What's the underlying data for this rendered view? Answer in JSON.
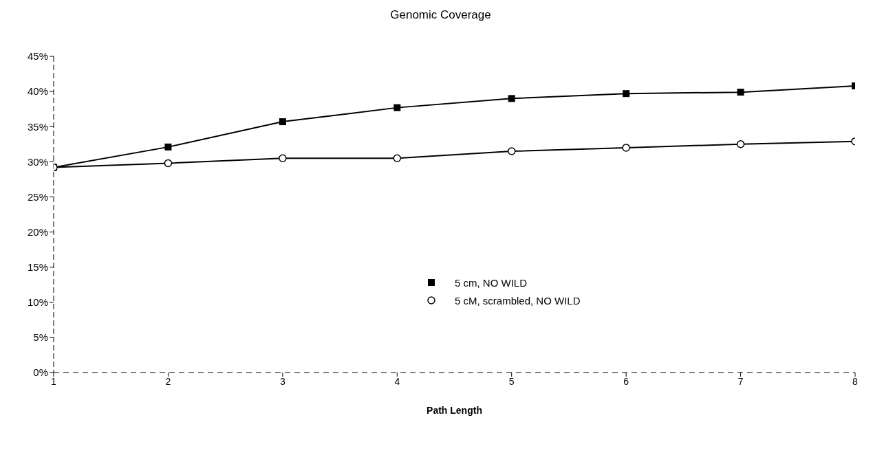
{
  "chart_data": {
    "type": "line",
    "title": "Genomic Coverage",
    "xlabel": "Path Length",
    "x": [
      1,
      2,
      3,
      4,
      5,
      6,
      7,
      8
    ],
    "series": [
      {
        "name": "5 cm, NO WILD",
        "color": "#000000",
        "marker": "square",
        "values": [
          29.2,
          32.1,
          35.7,
          37.7,
          39.0,
          39.7,
          39.9,
          40.8
        ]
      },
      {
        "name": "5 cM, scrambled, NO WILD",
        "color": "#000000",
        "marker": "circle",
        "values": [
          29.2,
          29.8,
          30.5,
          30.5,
          31.5,
          32.0,
          32.5,
          32.9
        ]
      }
    ],
    "xlim": [
      1,
      8
    ],
    "xticks": [
      1,
      2,
      3,
      4,
      5,
      6,
      7,
      8
    ],
    "ylim": [
      0,
      45
    ],
    "yticks": [
      {
        "value": 0,
        "label": "0%"
      },
      {
        "value": 5,
        "label": "5%"
      },
      {
        "value": 10,
        "label": "10%"
      },
      {
        "value": 15,
        "label": "15%"
      },
      {
        "value": 20,
        "label": "20%"
      },
      {
        "value": 25,
        "label": "25%"
      },
      {
        "value": 30,
        "label": "30%"
      },
      {
        "value": 35,
        "label": "35%"
      },
      {
        "value": 40,
        "label": "40%"
      },
      {
        "value": 45,
        "label": "45%"
      }
    ],
    "grid": false,
    "legend": "right"
  }
}
